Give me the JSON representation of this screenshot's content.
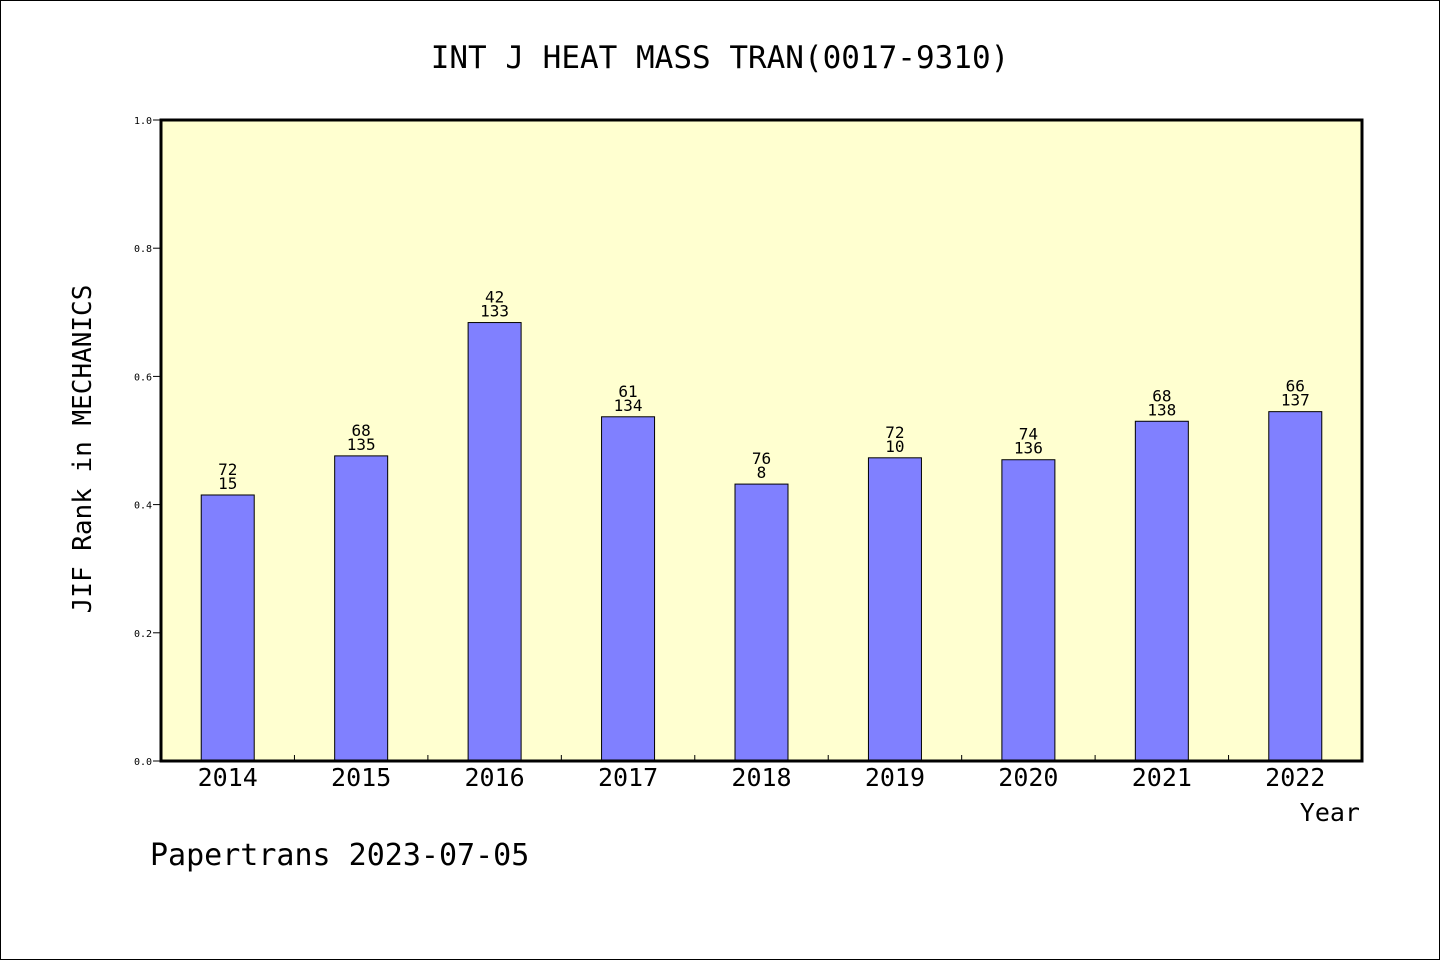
{
  "footer": "Papertrans 2023-07-05",
  "chart_data": {
    "type": "bar",
    "title": "INT J HEAT MASS TRAN(0017-9310)",
    "xlabel": "Year",
    "ylabel": "JIF Rank in MECHANICS",
    "ylim": [
      0,
      1.0
    ],
    "yticks": [
      "0.0",
      "0.2",
      "0.4",
      "0.6",
      "0.8",
      "1.0"
    ],
    "categories": [
      "2014",
      "2015",
      "2016",
      "2017",
      "2018",
      "2019",
      "2020",
      "2021",
      "2022"
    ],
    "values": [
      0.415,
      0.476,
      0.684,
      0.537,
      0.432,
      0.473,
      0.47,
      0.53,
      0.545
    ],
    "labels_top": [
      "72",
      "68",
      "42",
      "61",
      "76",
      "72",
      "74",
      "68",
      "66"
    ],
    "labels_bottom": [
      "15",
      "135",
      "133",
      "134",
      "8",
      "10",
      "136",
      "138",
      "137"
    ],
    "grid": false,
    "colors": {
      "plot_background": "#ffffd0",
      "bar": "#8080ff"
    }
  }
}
